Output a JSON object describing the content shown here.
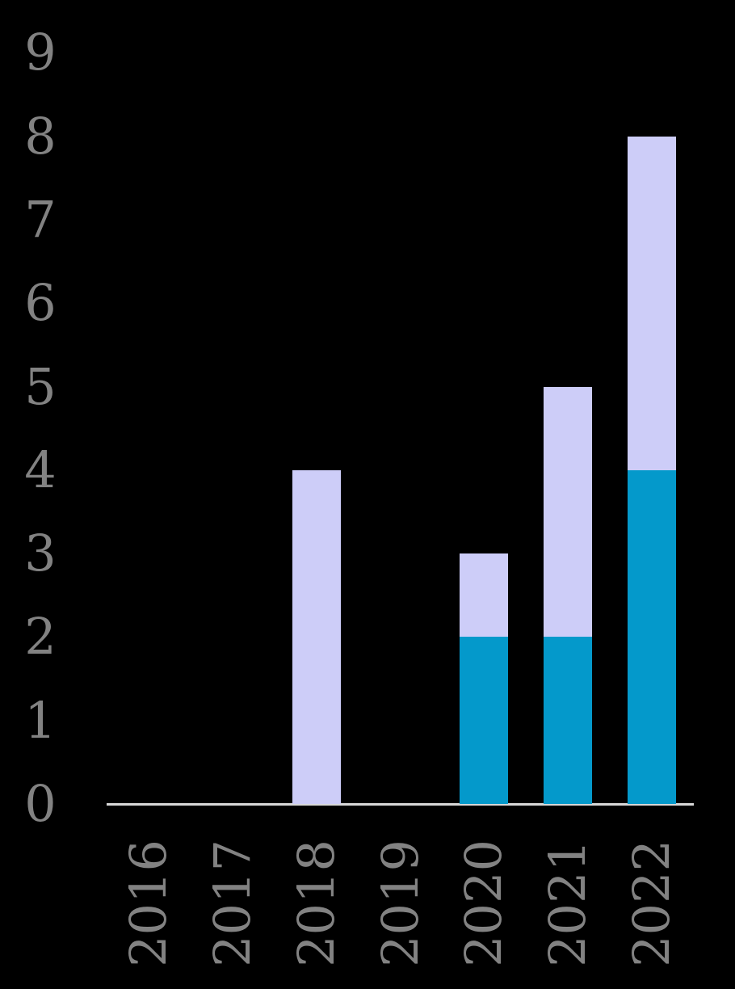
{
  "chart_data": {
    "type": "bar",
    "stacked": true,
    "title": "",
    "xlabel": "",
    "ylabel": "",
    "categories": [
      "2016",
      "2017",
      "2018",
      "2019",
      "2020",
      "2021",
      "2022"
    ],
    "series": [
      {
        "name": "teal-segment",
        "color": "#0499cb",
        "values": [
          0,
          0,
          0,
          0,
          2,
          2,
          4
        ]
      },
      {
        "name": "lavender-segment",
        "color": "#cdcdf8",
        "values": [
          0,
          0,
          4,
          0,
          1,
          3,
          4
        ]
      }
    ],
    "totals": [
      0,
      0,
      4,
      0,
      3,
      5,
      8
    ],
    "yticks": [
      "0",
      "1",
      "2",
      "3",
      "4",
      "5",
      "6",
      "7",
      "8",
      "9"
    ],
    "ylim": [
      0,
      9
    ],
    "grid": false,
    "legend": "none",
    "x_tick_rotation_deg": 90,
    "visible_spines": [
      "bottom"
    ]
  },
  "colors": {
    "background": "#000000",
    "tick_label": "#828282",
    "axis_line": "#d8d8d8",
    "bar_teal": "#0499cb",
    "bar_lavender": "#cdcdf8"
  }
}
